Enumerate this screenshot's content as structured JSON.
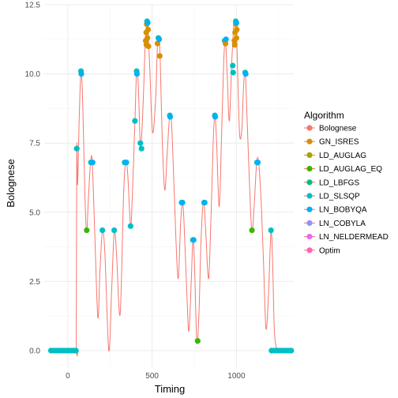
{
  "chart_data": {
    "type": "scatter",
    "title": "",
    "xlabel": "Timing",
    "ylabel": "Bolognese",
    "xlim": [
      -140,
      1340
    ],
    "ylim": [
      -0.6,
      12.5
    ],
    "x_ticks": [
      0,
      500,
      1000
    ],
    "x_tick_labels": [
      "0",
      "500",
      "1000"
    ],
    "y_ticks": [
      0.0,
      2.5,
      5.0,
      7.5,
      10.0,
      12.5
    ],
    "y_tick_labels": [
      "0.0",
      "2.5",
      "5.0",
      "7.5",
      "10.0",
      "12.5"
    ],
    "grid": true,
    "legend": {
      "title": "Algorithm",
      "position": "right",
      "entries": [
        {
          "name": "Bolognese",
          "color": "#F8766D"
        },
        {
          "name": "GN_ISRES",
          "color": "#D89000"
        },
        {
          "name": "LD_AUGLAG",
          "color": "#A3A500"
        },
        {
          "name": "LD_AUGLAG_EQ",
          "color": "#39B600"
        },
        {
          "name": "LD_LBFGS",
          "color": "#00BF7D"
        },
        {
          "name": "LD_SLSQP",
          "color": "#00BFC4"
        },
        {
          "name": "LN_BOBYQA",
          "color": "#00B0F6"
        },
        {
          "name": "LN_COBYLA",
          "color": "#9590FF"
        },
        {
          "name": "LN_NELDERMEAD",
          "color": "#E76BF3"
        },
        {
          "name": "Optim",
          "color": "#FF62BC"
        }
      ]
    },
    "line": {
      "series": "Bolognese",
      "color": "#F8766D",
      "points": [
        [
          -100,
          0
        ],
        [
          45,
          0
        ],
        [
          50,
          0.5
        ],
        [
          53,
          7.3
        ],
        [
          58,
          6.0
        ],
        [
          68,
          8.5
        ],
        [
          78,
          10.1
        ],
        [
          88,
          9.0
        ],
        [
          102,
          5.5
        ],
        [
          112,
          4.3
        ],
        [
          122,
          5.5
        ],
        [
          135,
          6.8
        ],
        [
          145,
          6.8
        ],
        [
          160,
          4.2
        ],
        [
          178,
          1.2
        ],
        [
          190,
          2.8
        ],
        [
          205,
          4.3
        ],
        [
          220,
          3.5
        ],
        [
          243,
          0.0
        ],
        [
          260,
          2.2
        ],
        [
          275,
          4.3
        ],
        [
          288,
          3.6
        ],
        [
          310,
          1.3
        ],
        [
          330,
          5.5
        ],
        [
          342,
          6.8
        ],
        [
          355,
          6.4
        ],
        [
          372,
          4.5
        ],
        [
          382,
          5.5
        ],
        [
          398,
          8.3
        ],
        [
          408,
          10.1
        ],
        [
          418,
          9.6
        ],
        [
          430,
          7.4
        ],
        [
          440,
          8.0
        ],
        [
          450,
          9.5
        ],
        [
          460,
          11.2
        ],
        [
          472,
          11.9
        ],
        [
          486,
          10.2
        ],
        [
          502,
          7.9
        ],
        [
          520,
          9.0
        ],
        [
          532,
          11.1
        ],
        [
          540,
          11.3
        ],
        [
          548,
          10.5
        ],
        [
          560,
          7.6
        ],
        [
          575,
          5.8
        ],
        [
          590,
          7.2
        ],
        [
          605,
          8.5
        ],
        [
          618,
          7.9
        ],
        [
          640,
          4.2
        ],
        [
          655,
          2.6
        ],
        [
          668,
          4.5
        ],
        [
          678,
          5.3
        ],
        [
          688,
          4.8
        ],
        [
          705,
          2.2
        ],
        [
          718,
          0.7
        ],
        [
          732,
          2.5
        ],
        [
          742,
          4.0
        ],
        [
          752,
          3.0
        ],
        [
          765,
          0.3
        ],
        [
          778,
          1.4
        ],
        [
          790,
          4.0
        ],
        [
          805,
          5.4
        ],
        [
          818,
          4.3
        ],
        [
          835,
          2.6
        ],
        [
          850,
          5.0
        ],
        [
          862,
          7.5
        ],
        [
          872,
          8.5
        ],
        [
          882,
          7.6
        ],
        [
          898,
          5.2
        ],
        [
          912,
          7.8
        ],
        [
          925,
          10.5
        ],
        [
          935,
          11.2
        ],
        [
          945,
          10.0
        ],
        [
          958,
          8.3
        ],
        [
          972,
          10.4
        ],
        [
          985,
          11.8
        ],
        [
          995,
          11.9
        ],
        [
          1003,
          11.0
        ],
        [
          1018,
          7.9
        ],
        [
          1032,
          8.0
        ],
        [
          1042,
          9.5
        ],
        [
          1052,
          10.1
        ],
        [
          1062,
          8.6
        ],
        [
          1080,
          5.6
        ],
        [
          1092,
          4.3
        ],
        [
          1105,
          5.2
        ],
        [
          1120,
          6.8
        ],
        [
          1132,
          6.8
        ],
        [
          1148,
          5.2
        ],
        [
          1160,
          3.3
        ],
        [
          1175,
          0.8
        ],
        [
          1190,
          2.0
        ],
        [
          1205,
          4.3
        ],
        [
          1215,
          3.1
        ],
        [
          1225,
          0.7
        ],
        [
          1240,
          0
        ]
      ]
    },
    "points": [
      {
        "series": "LD_SLSQP",
        "x": -100,
        "y": 0
      },
      {
        "series": "LD_SLSQP",
        "x": -85,
        "y": 0
      },
      {
        "series": "LD_SLSQP",
        "x": -70,
        "y": 0
      },
      {
        "series": "LD_SLSQP",
        "x": -55,
        "y": 0
      },
      {
        "series": "LD_SLSQP",
        "x": -40,
        "y": 0
      },
      {
        "series": "LD_SLSQP",
        "x": -25,
        "y": 0
      },
      {
        "series": "LD_SLSQP",
        "x": -10,
        "y": 0
      },
      {
        "series": "LD_SLSQP",
        "x": 5,
        "y": 0
      },
      {
        "series": "LD_SLSQP",
        "x": 20,
        "y": 0
      },
      {
        "series": "LD_SLSQP",
        "x": 35,
        "y": 0
      },
      {
        "series": "LD_SLSQP",
        "x": 48,
        "y": 0
      },
      {
        "series": "LD_SLSQP",
        "x": 53,
        "y": 7.3
      },
      {
        "series": "LD_SLSQP",
        "x": 78,
        "y": 10.1
      },
      {
        "series": "LN_BOBYQA",
        "x": 80,
        "y": 10.0
      },
      {
        "series": "LD_AUGLAG_EQ",
        "x": 112,
        "y": 4.35
      },
      {
        "series": "LD_SLSQP",
        "x": 137,
        "y": 6.8
      },
      {
        "series": "LN_BOBYQA",
        "x": 147,
        "y": 6.8
      },
      {
        "series": "LD_SLSQP",
        "x": 205,
        "y": 4.35
      },
      {
        "series": "LD_SLSQP",
        "x": 275,
        "y": 4.35
      },
      {
        "series": "LD_SLSQP",
        "x": 337,
        "y": 6.8
      },
      {
        "series": "LN_BOBYQA",
        "x": 347,
        "y": 6.8
      },
      {
        "series": "LD_SLSQP",
        "x": 372,
        "y": 4.5
      },
      {
        "series": "LD_SLSQP",
        "x": 398,
        "y": 8.3
      },
      {
        "series": "LD_SLSQP",
        "x": 408,
        "y": 10.1
      },
      {
        "series": "LN_BOBYQA",
        "x": 410,
        "y": 10.0
      },
      {
        "series": "LD_SLSQP",
        "x": 430,
        "y": 7.5
      },
      {
        "series": "LD_SLSQP",
        "x": 437,
        "y": 7.3
      },
      {
        "series": "GN_ISRES",
        "x": 462,
        "y": 11.2
      },
      {
        "series": "GN_ISRES",
        "x": 465,
        "y": 11.5
      },
      {
        "series": "GN_ISRES",
        "x": 468,
        "y": 11.8
      },
      {
        "series": "GN_ISRES",
        "x": 472,
        "y": 11.3
      },
      {
        "series": "GN_ISRES",
        "x": 476,
        "y": 11.6
      },
      {
        "series": "GN_ISRES",
        "x": 470,
        "y": 11.9
      },
      {
        "series": "LD_SLSQP",
        "x": 470,
        "y": 11.9
      },
      {
        "series": "LN_BOBYQA",
        "x": 474,
        "y": 11.85
      },
      {
        "series": "GN_ISRES",
        "x": 478,
        "y": 11.0
      },
      {
        "series": "GN_ISRES",
        "x": 466,
        "y": 11.05
      },
      {
        "series": "GN_ISRES",
        "x": 532,
        "y": 11.1
      },
      {
        "series": "LD_SLSQP",
        "x": 537,
        "y": 11.3
      },
      {
        "series": "LN_BOBYQA",
        "x": 542,
        "y": 11.25
      },
      {
        "series": "GN_ISRES",
        "x": 545,
        "y": 10.65
      },
      {
        "series": "LD_SLSQP",
        "x": 605,
        "y": 8.5
      },
      {
        "series": "LN_BOBYQA",
        "x": 607,
        "y": 8.45
      },
      {
        "series": "LD_SLSQP",
        "x": 675,
        "y": 5.35
      },
      {
        "series": "LN_BOBYQA",
        "x": 680,
        "y": 5.35
      },
      {
        "series": "LD_SLSQP",
        "x": 742,
        "y": 4.0
      },
      {
        "series": "LN_BOBYQA",
        "x": 746,
        "y": 4.0
      },
      {
        "series": "LD_AUGLAG_EQ",
        "x": 770,
        "y": 0.35
      },
      {
        "series": "LD_SLSQP",
        "x": 808,
        "y": 5.35
      },
      {
        "series": "LN_BOBYQA",
        "x": 812,
        "y": 5.35
      },
      {
        "series": "LD_SLSQP",
        "x": 872,
        "y": 8.5
      },
      {
        "series": "LN_BOBYQA",
        "x": 874,
        "y": 8.45
      },
      {
        "series": "LD_SLSQP",
        "x": 930,
        "y": 11.2
      },
      {
        "series": "GN_ISRES",
        "x": 935,
        "y": 11.1
      },
      {
        "series": "LN_BOBYQA",
        "x": 938,
        "y": 11.25
      },
      {
        "series": "LD_SLSQP",
        "x": 978,
        "y": 10.3
      },
      {
        "series": "LD_SLSQP",
        "x": 980,
        "y": 10.05
      },
      {
        "series": "GN_ISRES",
        "x": 988,
        "y": 11.2
      },
      {
        "series": "GN_ISRES",
        "x": 992,
        "y": 11.5
      },
      {
        "series": "GN_ISRES",
        "x": 996,
        "y": 11.8
      },
      {
        "series": "GN_ISRES",
        "x": 1000,
        "y": 11.3
      },
      {
        "series": "GN_ISRES",
        "x": 1002,
        "y": 11.6
      },
      {
        "series": "LD_SLSQP",
        "x": 996,
        "y": 11.9
      },
      {
        "series": "LN_BOBYQA",
        "x": 1000,
        "y": 11.85
      },
      {
        "series": "GN_ISRES",
        "x": 990,
        "y": 11.05
      },
      {
        "series": "LD_SLSQP",
        "x": 1052,
        "y": 10.05
      },
      {
        "series": "LN_BOBYQA",
        "x": 1055,
        "y": 10.0
      },
      {
        "series": "LD_AUGLAG_EQ",
        "x": 1092,
        "y": 4.35
      },
      {
        "series": "LD_SLSQP",
        "x": 1122,
        "y": 6.8
      },
      {
        "series": "LN_BOBYQA",
        "x": 1127,
        "y": 6.8
      },
      {
        "series": "LD_SLSQP",
        "x": 1205,
        "y": 4.35
      },
      {
        "series": "LD_SLSQP",
        "x": 1208,
        "y": 0
      },
      {
        "series": "LD_SLSQP",
        "x": 1223,
        "y": 0
      },
      {
        "series": "LD_SLSQP",
        "x": 1238,
        "y": 0
      },
      {
        "series": "LD_SLSQP",
        "x": 1253,
        "y": 0
      },
      {
        "series": "LD_SLSQP",
        "x": 1268,
        "y": 0
      },
      {
        "series": "LD_SLSQP",
        "x": 1283,
        "y": 0
      },
      {
        "series": "LD_SLSQP",
        "x": 1298,
        "y": 0
      },
      {
        "series": "LD_SLSQP",
        "x": 1313,
        "y": 0
      },
      {
        "series": "LD_SLSQP",
        "x": 1325,
        "y": 0
      }
    ]
  }
}
